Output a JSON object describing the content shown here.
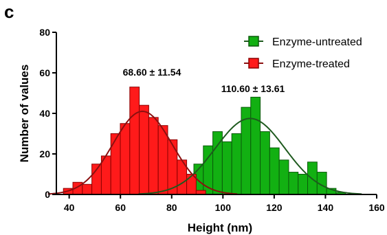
{
  "panel_label": "c",
  "chart_data": {
    "type": "bar",
    "xlabel": "Height (nm)",
    "ylabel": "Number of values",
    "xlim": [
      35,
      160
    ],
    "ylim": [
      0,
      80
    ],
    "x_ticks": [
      40,
      60,
      80,
      100,
      120,
      140,
      160
    ],
    "y_ticks": [
      0,
      20,
      40,
      60,
      80
    ],
    "bin_width": 3.7,
    "legend_position": "top-right",
    "series": [
      {
        "name": "Enzyme-untreated",
        "color": "#12b012",
        "edge_color": "#0a5a0a",
        "curve_color": "#1e5a1e",
        "mean": 110.6,
        "sd": 13.61,
        "annotation": "110.60 ± 13.61",
        "curve_peak": 37.5,
        "bin_centers": [
          72,
          75.7,
          79.4,
          83.1,
          86.8,
          90.5,
          94.2,
          97.9,
          101.6,
          105.3,
          109,
          112.7,
          116.4,
          120.1,
          123.8,
          127.5,
          131.2,
          134.9,
          138.6,
          142.3,
          146
        ],
        "values": [
          1,
          1,
          3,
          3,
          8,
          15,
          24,
          31,
          26,
          30,
          43,
          48,
          31,
          23,
          17,
          11,
          10,
          16,
          11,
          3,
          1
        ]
      },
      {
        "name": "Enzyme-treated",
        "color": "#ff1a1a",
        "edge_color": "#8a0000",
        "curve_color": "#8b1010",
        "mean": 68.6,
        "sd": 11.54,
        "annotation": "68.60 ± 11.54",
        "curve_peak": 41,
        "bin_centers": [
          39.6,
          43.3,
          47,
          50.7,
          54.4,
          58.1,
          61.8,
          65.5,
          69.2,
          72.9,
          76.6,
          80.3,
          84,
          87.7,
          91.4
        ],
        "values": [
          3,
          6,
          5,
          15,
          19,
          30,
          35,
          53,
          44,
          38,
          34,
          27,
          17,
          10,
          2
        ]
      }
    ]
  }
}
